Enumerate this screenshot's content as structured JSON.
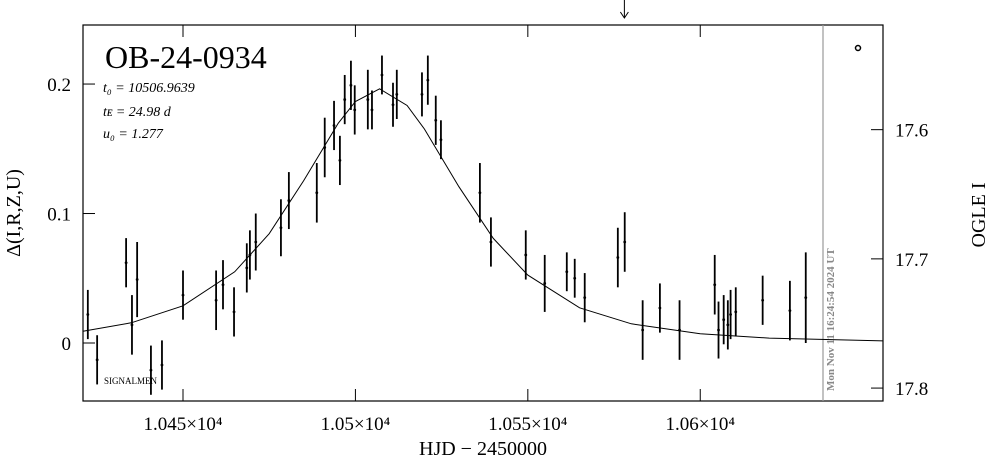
{
  "chart_data": {
    "type": "errorbar",
    "title": "OB-24-0934",
    "annotations": [
      "t₀ = 10506.9639",
      "tᴇ = 24.98 d",
      "u₀ = 1.277"
    ],
    "footnote": "SIGNALMEN",
    "x_label": "HJD − 2450000",
    "y_label": "Δ(I,R,Z,U)",
    "y2_label": "OGLE I",
    "xlim": [
      10421,
      10653
    ],
    "xticks": [
      {
        "value": 10450,
        "label": "1.045×10⁴"
      },
      {
        "value": 10500,
        "label": "1.05×10⁴"
      },
      {
        "value": 10550,
        "label": "1.055×10⁴"
      },
      {
        "value": 10600,
        "label": "1.06×10⁴"
      }
    ],
    "ylim": [
      -0.0448,
      0.2456
    ],
    "yticks": [
      0,
      0.1,
      0.2
    ],
    "y2lim": [
      17.81,
      17.519
    ],
    "y2ticks": [
      17.6,
      17.7,
      17.8
    ],
    "marker_x": 10578,
    "date_line": {
      "x": 10635.6,
      "label": "Mon Nov 11 16:24:54 2024 UT"
    },
    "series": [
      {
        "name": "data",
        "color": "#000000",
        "x": [
          10422.4,
          10425.1,
          10433.5,
          10435.2,
          10436.7,
          10440.7,
          10443.9,
          10450,
          10459.6,
          10461.6,
          10464.8,
          10468.5,
          10469.4,
          10471.1,
          10478.4,
          10480.7,
          10488.8,
          10491.1,
          10493.8,
          10495.5,
          10496.9,
          10498.7,
          10499.8,
          10503.6,
          10504.8,
          10507.7,
          10510.9,
          10512.0,
          10519.3,
          10521.0,
          10523.3,
          10524.8,
          10536.1,
          10539.3,
          10549.4,
          10554.9,
          10561.3,
          10563.6,
          10566.5,
          10576.1,
          10578.1,
          10583.3,
          10588.3,
          10594.0,
          10604.2,
          10605.3,
          10606.8,
          10608.0,
          10608.8,
          10610.3,
          10618.1,
          10626.0,
          10630.6
        ],
        "values": [
          0.022,
          -0.013,
          0.062,
          0.014,
          0.049,
          -0.021,
          -0.017,
          0.037,
          0.033,
          0.045,
          0.024,
          0.058,
          0.068,
          0.078,
          0.089,
          0.11,
          0.116,
          0.151,
          0.168,
          0.141,
          0.188,
          0.199,
          0.18,
          0.188,
          0.18,
          0.207,
          0.184,
          0.192,
          0.192,
          0.203,
          0.172,
          0.157,
          0.116,
          0.078,
          0.068,
          0.046,
          0.055,
          0.05,
          0.035,
          0.066,
          0.078,
          0.01,
          0.027,
          0.01,
          0.045,
          0.01,
          0.018,
          0.014,
          0.022,
          0.024,
          0.033,
          0.025,
          0.035
        ],
        "errors": [
          0.019,
          0.019,
          0.019,
          0.023,
          0.029,
          0.019,
          0.019,
          0.019,
          0.023,
          0.019,
          0.019,
          0.019,
          0.019,
          0.022,
          0.022,
          0.022,
          0.023,
          0.023,
          0.019,
          0.019,
          0.019,
          0.019,
          0.019,
          0.023,
          0.015,
          0.015,
          0.017,
          0.019,
          0.017,
          0.019,
          0.019,
          0.015,
          0.023,
          0.019,
          0.019,
          0.022,
          0.015,
          0.015,
          0.019,
          0.023,
          0.023,
          0.023,
          0.019,
          0.023,
          0.023,
          0.022,
          0.019,
          0.019,
          0.019,
          0.019,
          0.019,
          0.023,
          0.035
        ]
      },
      {
        "name": "model",
        "color": "#000000",
        "x": [
          10421,
          10435,
          10450,
          10465,
          10475,
          10485,
          10495,
          10500,
          10507,
          10515,
          10520,
          10530,
          10540,
          10550,
          10565,
          10580,
          10600,
          10620,
          10653
        ],
        "values": [
          0.0091,
          0.0156,
          0.0287,
          0.055,
          0.0844,
          0.1254,
          0.1697,
          0.1865,
          0.1963,
          0.1834,
          0.1653,
          0.1207,
          0.0808,
          0.0524,
          0.0272,
          0.0148,
          0.0071,
          0.0038,
          0.0016
        ]
      }
    ]
  }
}
